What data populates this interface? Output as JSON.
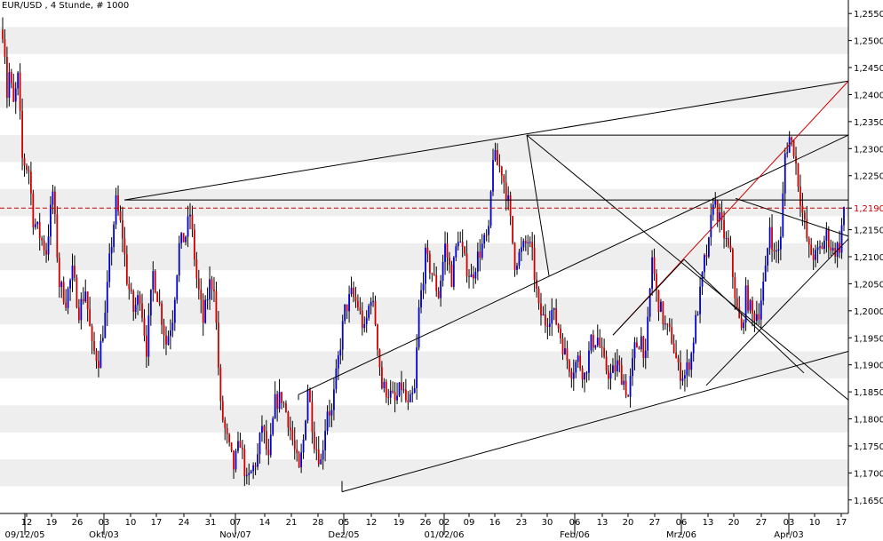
{
  "chart_data": {
    "type": "candlestick",
    "title": "EUR/USD , 4 Stunde, # 1000",
    "ylim": [
      1.1625,
      1.2575
    ],
    "yticks": [
      1.165,
      1.17,
      1.175,
      1.18,
      1.185,
      1.19,
      1.195,
      1.2,
      1.205,
      1.21,
      1.215,
      1.219,
      1.225,
      1.23,
      1.235,
      1.24,
      1.245,
      1.25,
      1.255
    ],
    "ytick_labels": [
      "1,1650",
      "1,1700",
      "1,1750",
      "1,1800",
      "1,1850",
      "1,1900",
      "1,1950",
      "1,2000",
      "1,2050",
      "1,2100",
      "1,2150",
      "1,2190",
      "1,2250",
      "1,2300",
      "1,2350",
      "1,2400",
      "1,2450",
      "1,2500",
      "1,2550"
    ],
    "current_price_label": "1,2190",
    "current_price": 1.219,
    "x_day_ticks": [
      "12",
      "19",
      "26",
      "03",
      "10",
      "17",
      "24",
      "31",
      "07",
      "14",
      "21",
      "28",
      "05",
      "12",
      "19",
      "26",
      "02",
      "09",
      "16",
      "23",
      "30",
      "06",
      "13",
      "20",
      "27",
      "06",
      "13",
      "20",
      "27",
      "03",
      "10",
      "17"
    ],
    "x_month_labels": [
      "09/12/05",
      "Okt/03",
      "Nov/07",
      "Dez/05",
      "01/02/06",
      "Feb/06",
      "Mrz/06",
      "Apr/03"
    ],
    "price_path": [
      [
        0,
        1.252
      ],
      [
        1,
        1.248
      ],
      [
        2,
        1.24
      ],
      [
        3,
        1.244
      ],
      [
        5,
        1.238
      ],
      [
        7,
        1.243
      ],
      [
        9,
        1.228
      ],
      [
        12,
        1.226
      ],
      [
        14,
        1.217
      ],
      [
        17,
        1.214
      ],
      [
        20,
        1.211
      ],
      [
        23,
        1.222
      ],
      [
        26,
        1.205
      ],
      [
        29,
        1.202
      ],
      [
        32,
        1.207
      ],
      [
        35,
        1.2
      ],
      [
        38,
        1.204
      ],
      [
        41,
        1.193
      ],
      [
        44,
        1.191
      ],
      [
        47,
        1.199
      ],
      [
        49,
        1.209
      ],
      [
        52,
        1.22
      ],
      [
        55,
        1.214
      ],
      [
        57,
        1.206
      ],
      [
        60,
        1.2
      ],
      [
        63,
        1.203
      ],
      [
        66,
        1.193
      ],
      [
        69,
        1.207
      ],
      [
        72,
        1.201
      ],
      [
        75,
        1.194
      ],
      [
        78,
        1.199
      ],
      [
        81,
        1.212
      ],
      [
        84,
        1.214
      ],
      [
        86,
        1.218
      ],
      [
        89,
        1.206
      ],
      [
        92,
        1.198
      ],
      [
        95,
        1.205
      ],
      [
        97,
        1.205
      ],
      [
        100,
        1.182
      ],
      [
        103,
        1.176
      ],
      [
        106,
        1.171
      ],
      [
        109,
        1.176
      ],
      [
        112,
        1.168
      ],
      [
        115,
        1.171
      ],
      [
        117,
        1.173
      ],
      [
        119,
        1.179
      ],
      [
        122,
        1.172
      ],
      [
        125,
        1.183
      ],
      [
        128,
        1.184
      ],
      [
        131,
        1.18
      ],
      [
        133,
        1.176
      ],
      [
        136,
        1.17
      ],
      [
        138,
        1.176
      ],
      [
        140,
        1.186
      ],
      [
        143,
        1.176
      ],
      [
        146,
        1.172
      ],
      [
        149,
        1.182
      ],
      [
        151,
        1.181
      ],
      [
        154,
        1.191
      ],
      [
        157,
        1.2
      ],
      [
        160,
        1.203
      ],
      [
        163,
        1.201
      ],
      [
        166,
        1.196
      ],
      [
        169,
        1.203
      ],
      [
        171,
        1.198
      ],
      [
        174,
        1.186
      ],
      [
        177,
        1.185
      ],
      [
        180,
        1.183
      ],
      [
        183,
        1.186
      ],
      [
        186,
        1.182
      ],
      [
        189,
        1.185
      ],
      [
        191,
        1.2
      ],
      [
        194,
        1.21
      ],
      [
        197,
        1.207
      ],
      [
        200,
        1.203
      ],
      [
        203,
        1.212
      ],
      [
        206,
        1.206
      ],
      [
        209,
        1.214
      ],
      [
        212,
        1.209
      ],
      [
        215,
        1.206
      ],
      [
        218,
        1.21
      ],
      [
        220,
        1.212
      ],
      [
        223,
        1.214
      ],
      [
        225,
        1.229
      ],
      [
        227,
        1.227
      ],
      [
        229,
        1.226
      ],
      [
        232,
        1.22
      ],
      [
        235,
        1.209
      ],
      [
        238,
        1.211
      ],
      [
        241,
        1.213
      ],
      [
        243,
        1.21
      ],
      [
        246,
        1.2
      ],
      [
        249,
        1.198
      ],
      [
        252,
        1.2
      ],
      [
        255,
        1.197
      ],
      [
        258,
        1.192
      ],
      [
        261,
        1.189
      ],
      [
        264,
        1.191
      ],
      [
        267,
        1.188
      ],
      [
        270,
        1.194
      ],
      [
        273,
        1.195
      ],
      [
        276,
        1.19
      ],
      [
        279,
        1.188
      ],
      [
        282,
        1.19
      ],
      [
        285,
        1.187
      ],
      [
        287,
        1.184
      ],
      [
        290,
        1.193
      ],
      [
        293,
        1.195
      ],
      [
        295,
        1.191
      ],
      [
        298,
        1.21
      ],
      [
        300,
        1.203
      ],
      [
        302,
        1.2
      ],
      [
        304,
        1.197
      ],
      [
        307,
        1.195
      ],
      [
        310,
        1.189
      ],
      [
        313,
        1.188
      ],
      [
        316,
        1.192
      ],
      [
        318,
        1.198
      ],
      [
        320,
        1.203
      ],
      [
        322,
        1.209
      ],
      [
        324,
        1.212
      ],
      [
        326,
        1.221
      ],
      [
        328,
        1.218
      ],
      [
        331,
        1.214
      ],
      [
        334,
        1.21
      ],
      [
        337,
        1.2
      ],
      [
        339,
        1.196
      ],
      [
        341,
        1.203
      ],
      [
        344,
        1.199
      ],
      [
        347,
        1.2
      ],
      [
        350,
        1.207
      ],
      [
        352,
        1.216
      ],
      [
        354,
        1.21
      ],
      [
        357,
        1.213
      ],
      [
        359,
        1.229
      ],
      [
        361,
        1.232
      ],
      [
        363,
        1.23
      ],
      [
        365,
        1.224
      ],
      [
        367,
        1.218
      ],
      [
        370,
        1.211
      ],
      [
        373,
        1.21
      ],
      [
        376,
        1.212
      ],
      [
        378,
        1.214
      ],
      [
        381,
        1.211
      ],
      [
        384,
        1.212
      ],
      [
        386,
        1.219
      ]
    ],
    "n_bars": 387,
    "colors": {
      "up": "#0000d0",
      "down": "#d00000",
      "wick": "#000000",
      "band": "#eeeeee",
      "red_level": "#cc0000",
      "trendline": "#000000",
      "red_trendline": "#cc0000"
    },
    "grid": true
  }
}
